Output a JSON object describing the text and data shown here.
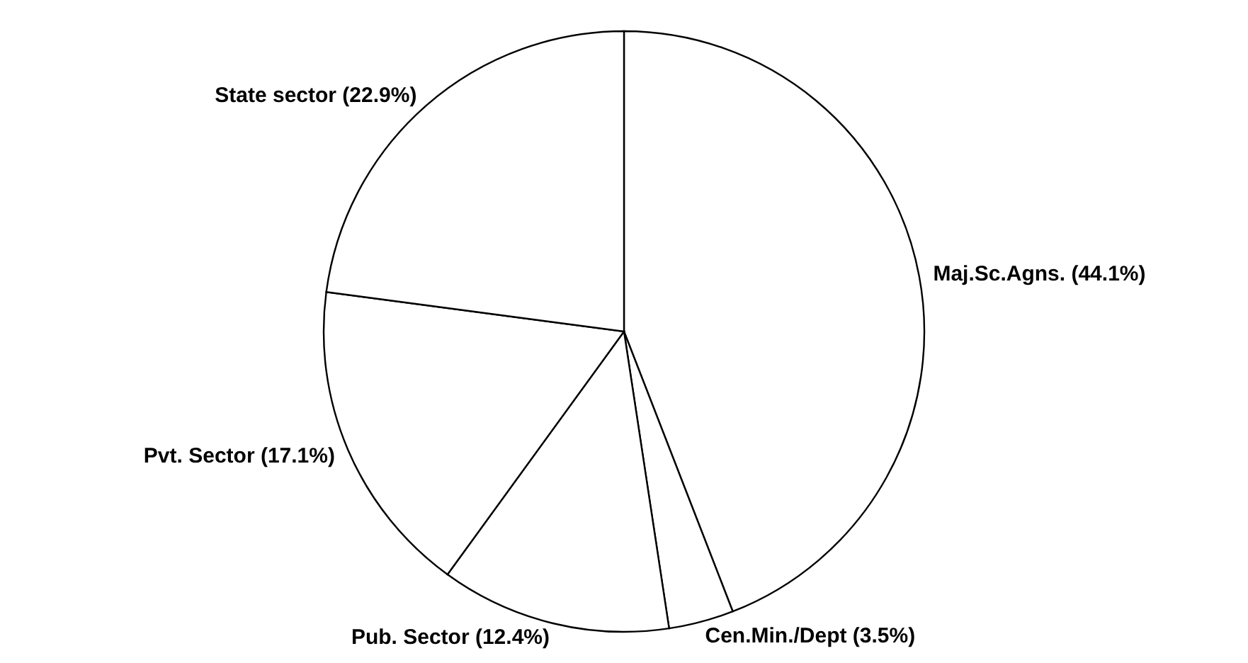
{
  "chart_data": {
    "type": "pie",
    "categories": [
      "Maj.Sc.Agns. (44.1%)",
      "Cen.Min./Dept (3.5%)",
      "Pub. Sector (12.4%)",
      "Pvt. Sector (17.1%)",
      "State sector (22.9%)"
    ],
    "values": [
      44.1,
      3.5,
      12.4,
      17.1,
      22.9
    ],
    "colors": [
      "#ffffff",
      "#ffffff",
      "#ffffff",
      "#ffffff",
      "#ffffff"
    ]
  }
}
